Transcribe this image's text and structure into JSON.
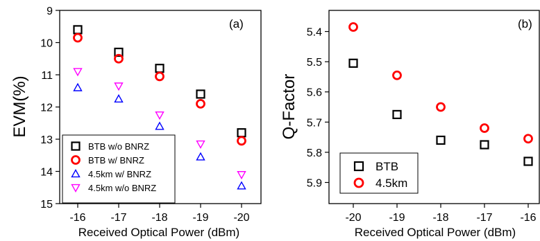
{
  "chart_data": [
    {
      "type": "scatter",
      "panel_label": "(a)",
      "xlabel": "Received Optical Power (dBm)",
      "ylabel": "EVM(%)",
      "x_ticks": [
        "-16",
        "-17",
        "-18",
        "-19",
        "-20"
      ],
      "x_values": [
        -16,
        -17,
        -18,
        -19,
        -20
      ],
      "ylim": [
        9,
        15
      ],
      "y_inverted": true,
      "y_ticks": [
        "9",
        "10",
        "11",
        "12",
        "13",
        "14",
        "15"
      ],
      "legend_placement": "bottom-left",
      "series": [
        {
          "name": "BTB w/o BNRZ",
          "marker": "square",
          "color": "#000000",
          "values": [
            9.6,
            10.3,
            10.8,
            11.6,
            12.8
          ]
        },
        {
          "name": "BTB w/ BNRZ",
          "marker": "circle",
          "color": "#ff0000",
          "values": [
            9.85,
            10.5,
            11.05,
            11.9,
            13.05
          ]
        },
        {
          "name": "4.5km w/ BNRZ",
          "marker": "triangle-up",
          "color": "#0000ff",
          "values": [
            11.4,
            11.75,
            12.6,
            13.55,
            14.45
          ]
        },
        {
          "name": "4.5km w/o BNRZ",
          "marker": "triangle-down",
          "color": "#ff00ff",
          "values": [
            10.9,
            11.35,
            12.25,
            13.15,
            14.1
          ]
        }
      ]
    },
    {
      "type": "scatter",
      "panel_label": "(b)",
      "xlabel": "Received Optical Power (dBm)",
      "ylabel": "Q-Factor",
      "x_ticks": [
        "-20",
        "-19",
        "-18",
        "-17",
        "-16"
      ],
      "x_values": [
        -20,
        -19,
        -18,
        -17,
        -16
      ],
      "ylim": [
        5.33,
        5.97
      ],
      "y_inverted": true,
      "y_ticks": [
        "5.4",
        "5.5",
        "5.6",
        "5.7",
        "5.8",
        "5.9"
      ],
      "legend_placement": "bottom-left",
      "series": [
        {
          "name": "BTB",
          "marker": "square",
          "color": "#000000",
          "values": [
            5.505,
            5.675,
            5.76,
            5.775,
            5.83
          ]
        },
        {
          "name": "4.5km",
          "marker": "circle",
          "color": "#ff0000",
          "values": [
            5.385,
            5.545,
            5.65,
            5.72,
            5.755
          ]
        }
      ]
    }
  ]
}
